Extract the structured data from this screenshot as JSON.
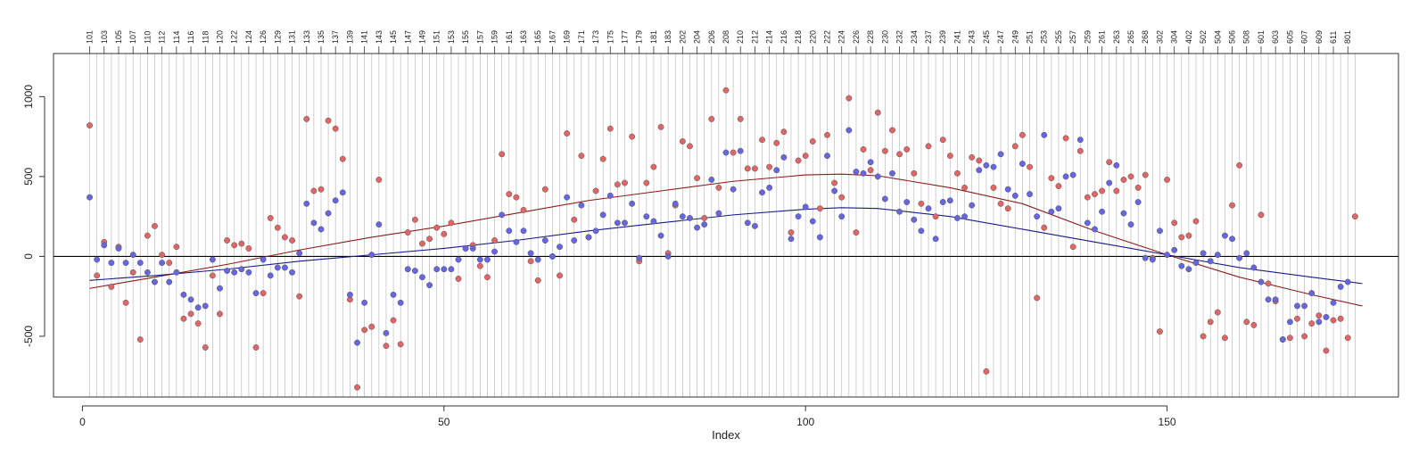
{
  "chart_data": {
    "type": "scatter",
    "title": "",
    "xlabel": "Index",
    "ylabel": "",
    "xlim": [
      -4,
      182
    ],
    "ylim": [
      -880,
      1270
    ],
    "x_ticks": [
      0,
      50,
      100,
      150
    ],
    "y_ticks": [
      -500,
      0,
      500,
      1000
    ],
    "reference_line_y": 0,
    "grid": "vertical lines at each index",
    "top_labels": [
      "101",
      "103",
      "105",
      "107",
      "110",
      "112",
      "114",
      "116",
      "118",
      "120",
      "122",
      "124",
      "126",
      "129",
      "131",
      "133",
      "135",
      "137",
      "139",
      "141",
      "143",
      "145",
      "147",
      "149",
      "151",
      "153",
      "155",
      "157",
      "159",
      "161",
      "163",
      "165",
      "167",
      "169",
      "171",
      "173",
      "175",
      "177",
      "179",
      "181",
      "183",
      "202",
      "204",
      "206",
      "208",
      "210",
      "212",
      "214",
      "216",
      "218",
      "220",
      "222",
      "224",
      "226",
      "228",
      "230",
      "232",
      "234",
      "237",
      "239",
      "241",
      "243",
      "245",
      "247",
      "249",
      "251",
      "253",
      "255",
      "257",
      "259",
      "261",
      "263",
      "265",
      "268",
      "302",
      "304",
      "402",
      "502",
      "504",
      "506",
      "508",
      "601",
      "603",
      "605",
      "607",
      "609",
      "611",
      "801"
    ],
    "colors": {
      "red_series": "#e06666",
      "blue_series": "#6666e0",
      "red_curve": "#8b1a1a",
      "blue_curve": "#1a1a8b"
    },
    "series": [
      {
        "marker": "point",
        "color": "red",
        "values": [
          820,
          -120,
          90,
          -190,
          60,
          -290,
          -100,
          -520,
          130,
          190,
          10,
          -40,
          60,
          -390,
          -360,
          -420,
          -570,
          -120,
          -360,
          100,
          70,
          80,
          50,
          -570,
          -230,
          240,
          180,
          120,
          100,
          -250,
          860,
          410,
          420,
          850,
          800,
          610,
          -270,
          -820,
          -460,
          -440,
          480,
          -560,
          -400,
          -550,
          150,
          230,
          80,
          110,
          180,
          140,
          210,
          -140,
          50,
          70,
          -60,
          -130,
          100,
          640,
          390,
          370,
          290,
          -30,
          -150,
          420,
          0,
          -120,
          770,
          230,
          630,
          120,
          410,
          610,
          800,
          450,
          460,
          750,
          -30,
          460,
          560,
          810,
          20,
          320,
          720,
          690,
          490,
          240,
          860,
          430,
          1040,
          650,
          860,
          550,
          550,
          730,
          560,
          710,
          780,
          150,
          600,
          630,
          720,
          300,
          760,
          460,
          370,
          990,
          150,
          670,
          540,
          900,
          660,
          790,
          640,
          670,
          520,
          330,
          690,
          250,
          730,
          630,
          520,
          430,
          620,
          600,
          -720,
          430,
          330,
          300,
          690,
          760,
          560,
          -260,
          180,
          490,
          440,
          740,
          60,
          660,
          370,
          390,
          410,
          590,
          410,
          480,
          500,
          430,
          510,
          -10,
          -470,
          480,
          210,
          120,
          130,
          220,
          -500,
          -410,
          -350,
          -510,
          320,
          570,
          -410,
          -430,
          260,
          -170,
          -280,
          -520,
          -510,
          -390,
          -500,
          -420,
          -370,
          -590,
          -400,
          -390,
          -510,
          250
        ]
      },
      {
        "marker": "point",
        "color": "blue",
        "values": [
          370,
          -20,
          70,
          -40,
          50,
          -40,
          10,
          -40,
          -100,
          -160,
          -40,
          -160,
          -100,
          -240,
          -270,
          -320,
          -310,
          -20,
          -200,
          -90,
          -100,
          -80,
          -100,
          -230,
          -20,
          -120,
          -70,
          -70,
          -100,
          20,
          330,
          210,
          170,
          270,
          350,
          400,
          -240,
          -540,
          -290,
          10,
          200,
          -480,
          -240,
          -290,
          -80,
          -90,
          -130,
          -180,
          -80,
          -80,
          -80,
          -20,
          50,
          50,
          -20,
          -20,
          30,
          260,
          160,
          90,
          160,
          20,
          -20,
          100,
          0,
          60,
          370,
          100,
          320,
          120,
          160,
          260,
          380,
          210,
          210,
          330,
          -10,
          250,
          220,
          130,
          0,
          330,
          250,
          240,
          180,
          200,
          480,
          270,
          650,
          420,
          660,
          210,
          190,
          400,
          430,
          540,
          620,
          110,
          250,
          310,
          220,
          120,
          630,
          410,
          250,
          790,
          530,
          520,
          590,
          500,
          360,
          520,
          280,
          340,
          230,
          160,
          300,
          110,
          340,
          350,
          240,
          250,
          320,
          540,
          570,
          560,
          640,
          420,
          380,
          580,
          390,
          250,
          760,
          280,
          300,
          500,
          510,
          730,
          210,
          170,
          280,
          460,
          570,
          270,
          200,
          340,
          -10,
          -20,
          160,
          10,
          40,
          -60,
          -80,
          -40,
          20,
          -30,
          10,
          130,
          110,
          -10,
          20,
          -70,
          -160,
          -270,
          -270,
          -520,
          -410,
          -310,
          -310,
          -230,
          -410,
          -380,
          -290,
          -190,
          -160
        ]
      }
    ],
    "curves": [
      {
        "color": "red",
        "x": [
          1,
          10,
          20,
          30,
          40,
          50,
          60,
          70,
          80,
          90,
          100,
          105,
          110,
          120,
          130,
          140,
          150,
          160,
          170,
          177
        ],
        "y": [
          -200,
          -130,
          -50,
          40,
          120,
          190,
          270,
          350,
          410,
          470,
          510,
          515,
          505,
          430,
          330,
          160,
          10,
          -130,
          -240,
          -310
        ]
      },
      {
        "color": "blue",
        "x": [
          1,
          10,
          20,
          30,
          40,
          50,
          60,
          70,
          80,
          90,
          100,
          105,
          110,
          120,
          130,
          140,
          150,
          160,
          170,
          177
        ],
        "y": [
          -150,
          -120,
          -80,
          -30,
          10,
          50,
          100,
          160,
          210,
          260,
          295,
          305,
          300,
          250,
          170,
          90,
          10,
          -70,
          -130,
          -170
        ]
      }
    ]
  }
}
